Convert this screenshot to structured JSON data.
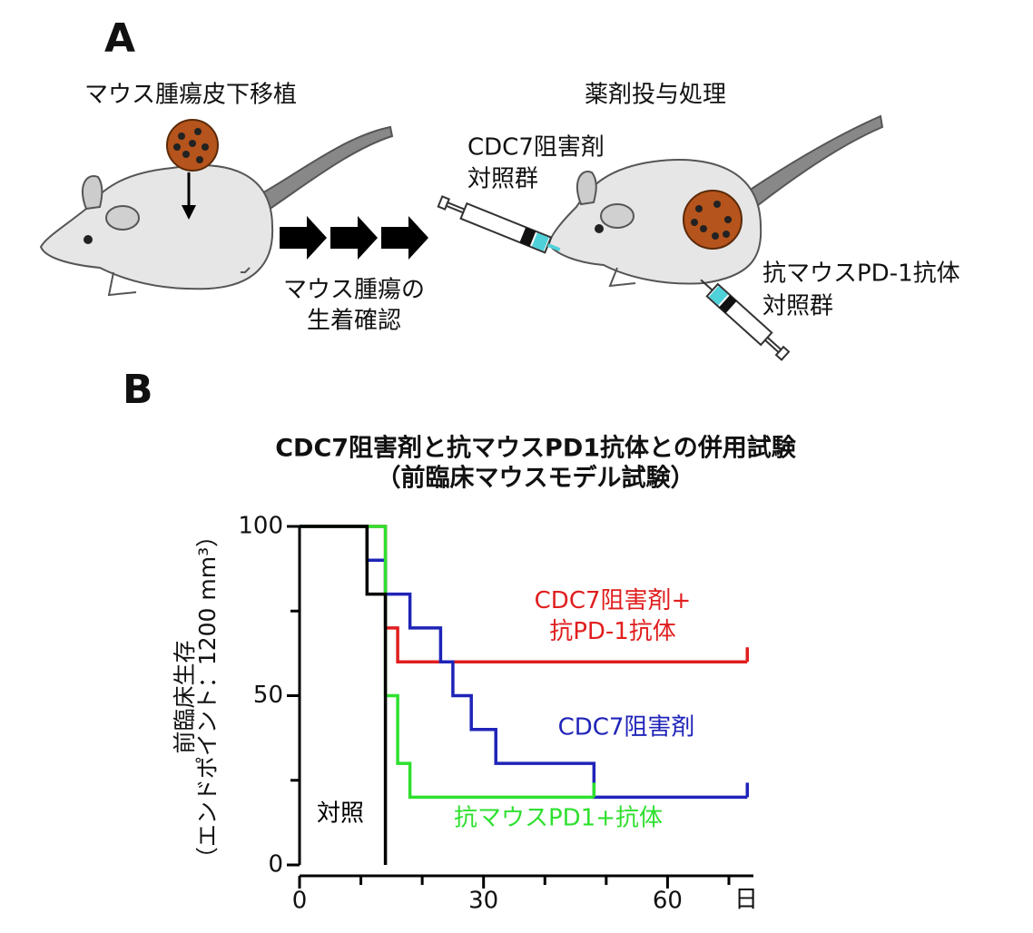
{
  "panel_labels": [
    "A",
    "B"
  ],
  "panel_a": {
    "step1": "マウス腫瘍皮下移植",
    "step2": "薬剤投与処理",
    "drug1": [
      "CDC7阻害剤",
      "対照群"
    ],
    "confirm": [
      "マウス腫瘍の",
      "生着確認"
    ],
    "drug2": [
      "抗マウスPD-1抗体",
      "対照群"
    ]
  },
  "chart_data": {
    "type": "step",
    "title": "CDC7阻害剤と抗マウスPD1抗体との併用試験",
    "subtitle": "（前臨床マウスモデル試験）",
    "ylabel": [
      "前臨床生存",
      "（エンドポイント：1200 mm³）"
    ],
    "xunit": "日",
    "xlim": [
      0,
      74
    ],
    "ylim": [
      0,
      100
    ],
    "xticks": [
      0,
      30,
      60
    ],
    "minor_xticks": [
      10,
      20,
      40,
      50,
      70
    ],
    "yticks": [
      0,
      50,
      100
    ],
    "minor_yticks": [
      25,
      75
    ],
    "series": [
      {
        "name": "CDC7阻害剤+抗PD-1抗体",
        "color": "#e01e1e",
        "x": [
          0,
          14,
          16,
          73
        ],
        "values": [
          100,
          70,
          60,
          60
        ]
      },
      {
        "name": "CDC7阻害剤",
        "color": "#1f24b8",
        "x": [
          0,
          11,
          14,
          18,
          23,
          25,
          28,
          32,
          48,
          73
        ],
        "values": [
          100,
          90,
          80,
          70,
          60,
          50,
          40,
          30,
          20,
          20
        ]
      },
      {
        "name": "抗マウスPD1+抗体",
        "color": "#2fe02f",
        "x": [
          0,
          14,
          16,
          18,
          48
        ],
        "values": [
          100,
          50,
          30,
          20,
          20
        ]
      },
      {
        "name": "対照",
        "color": "#000000",
        "x": [
          0,
          11,
          14
        ],
        "values": [
          100,
          80,
          0
        ]
      }
    ]
  }
}
